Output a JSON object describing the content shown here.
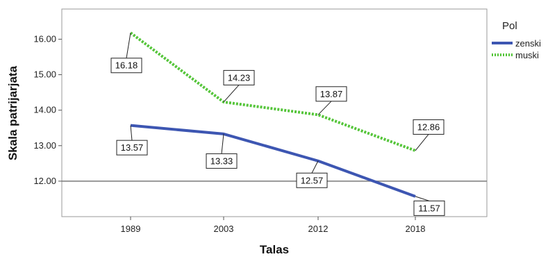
{
  "chart_data": {
    "type": "line",
    "xlabel": "Talas",
    "ylabel": "Skala patrijarjata",
    "categories": [
      "1989",
      "2003",
      "2012",
      "2018"
    ],
    "ylim": [
      11.0,
      16.85
    ],
    "yticks": [
      "12.00",
      "13.00",
      "14.00",
      "15.00",
      "16.00"
    ],
    "reference_line": 12.0,
    "grid": false,
    "legend": {
      "title": "Pol",
      "placement": "right"
    },
    "series": [
      {
        "name": "zenski",
        "values": [
          13.57,
          13.33,
          12.57,
          11.57
        ],
        "labels": [
          "13.57",
          "13.33",
          "12.57",
          "11.57"
        ],
        "color": "#3d56b2",
        "style": "solid"
      },
      {
        "name": "muski",
        "values": [
          16.18,
          14.23,
          13.87,
          12.86
        ],
        "labels": [
          "16.18",
          "14.23",
          "13.87",
          "12.86"
        ],
        "color": "#55c53a",
        "style": "dotted"
      }
    ]
  }
}
